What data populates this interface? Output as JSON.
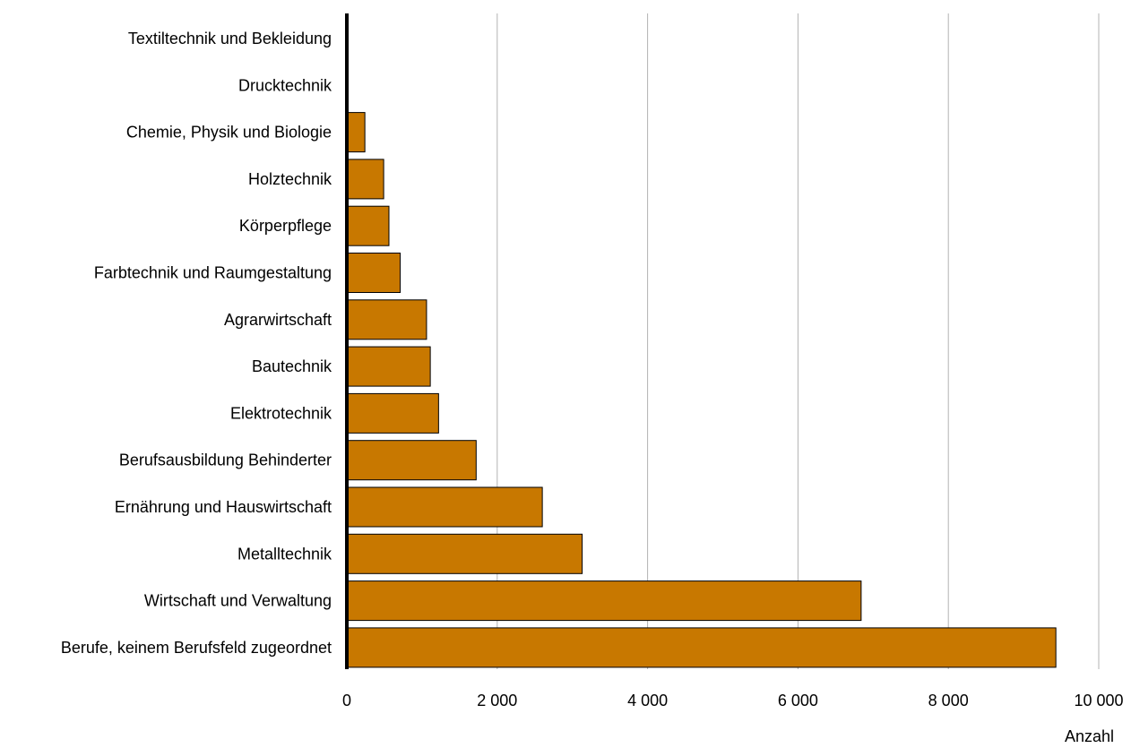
{
  "chart_data": {
    "type": "bar",
    "orientation": "horizontal",
    "categories": [
      "Textiltechnik und Bekleidung",
      "Drucktechnik",
      "Chemie, Physik und Biologie",
      "Holztechnik",
      "Körperpflege",
      "Farbtechnik und Raumgestaltung",
      "Agrarwirtschaft",
      "Bautechnik",
      "Elektrotechnik",
      "Berufsausbildung Behinderter",
      "Ernährung und Hauswirtschaft",
      "Metalltechnik",
      "Wirtschaft und Verwaltung",
      "Berufe, keinem Berufsfeld zugeordnet"
    ],
    "values": [
      0,
      0,
      240,
      490,
      560,
      710,
      1060,
      1110,
      1220,
      1720,
      2600,
      3130,
      6840,
      9430
    ],
    "xlabel": "Anzahl",
    "xlim": [
      0,
      10000
    ],
    "xticks": [
      0,
      2000,
      4000,
      6000,
      8000,
      10000
    ],
    "xtick_labels": [
      "0",
      "2 000",
      "4 000",
      "6 000",
      "8 000",
      "10 000"
    ],
    "grid": "vertical",
    "legend": "none",
    "colors": {
      "bar_fill": "#c87800",
      "bar_stroke": "#000000",
      "grid": "#b3b3b3",
      "axis": "#000000"
    }
  }
}
